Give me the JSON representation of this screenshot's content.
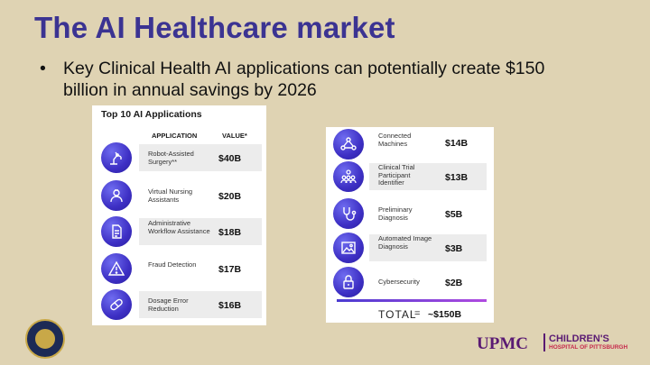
{
  "slide": {
    "title": "The AI Healthcare market",
    "bullet": "Key Clinical Health AI applications can potentially create $150 billion in annual savings by 2026"
  },
  "left_panel": {
    "title": "Top 10 AI Applications",
    "col_application": "APPLICATION",
    "col_value": "VALUE*",
    "rows": [
      {
        "name": "Robot-Assisted Surgery**",
        "value": "$40B",
        "icon": "robot-arm-icon"
      },
      {
        "name": "Virtual Nursing Assistants",
        "value": "$20B",
        "icon": "nurse-icon"
      },
      {
        "name": "Administrative Workflow Assistance",
        "value": "$18B",
        "icon": "document-icon"
      },
      {
        "name": "Fraud Detection",
        "value": "$17B",
        "icon": "warning-icon"
      },
      {
        "name": "Dosage Error Reduction",
        "value": "$16B",
        "icon": "pill-icon"
      }
    ]
  },
  "right_panel": {
    "rows": [
      {
        "name": "Connected Machines",
        "value": "$14B",
        "icon": "network-icon"
      },
      {
        "name": "Clinical Trial Participant Identifier",
        "value": "$13B",
        "icon": "people-icon"
      },
      {
        "name": "Preliminary Diagnosis",
        "value": "$5B",
        "icon": "stethoscope-icon"
      },
      {
        "name": "Automated Image Diagnosis",
        "value": "$3B",
        "icon": "image-icon"
      },
      {
        "name": "Cybersecurity",
        "value": "$2B",
        "icon": "lock-icon"
      }
    ],
    "total_label": "TOTAL",
    "total_eq": "=",
    "total_value": "~$150B"
  },
  "footer": {
    "seal": "university-seal-logo",
    "upmc": "UPMC",
    "childrens_l1": "CHILDREN'S",
    "childrens_l2": "HOSPITAL OF PITTSBURGH"
  },
  "colors": {
    "background": "#dfd3b3",
    "title": "#3b3392",
    "icon_circle": "#3d2fc4",
    "upmc_purple": "#5a1a73",
    "childrens_red": "#c6294b"
  }
}
